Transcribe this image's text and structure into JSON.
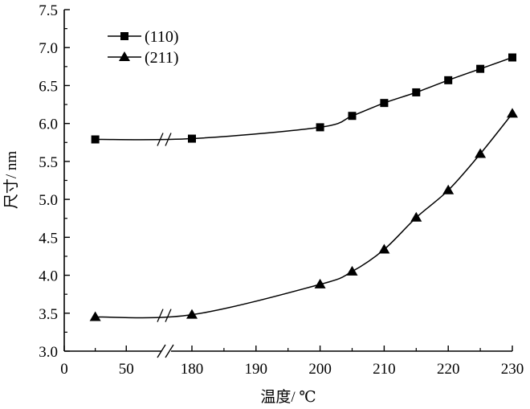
{
  "chart_data": {
    "type": "line",
    "title": "",
    "xlabel": "温度/ ℃",
    "ylabel": "尺寸/ nm",
    "x_axis_break": "between 50 and 180",
    "x_ticks_left": [
      0,
      50
    ],
    "x_ticks_right": [
      180,
      190,
      200,
      210,
      220,
      230
    ],
    "x_tick_labels": [
      "0",
      "50",
      "180",
      "190",
      "200",
      "210",
      "220",
      "230"
    ],
    "y_ticks": [
      3.0,
      3.5,
      4.0,
      4.5,
      5.0,
      5.5,
      6.0,
      6.5,
      7.0,
      7.5
    ],
    "y_tick_labels": [
      "3.0",
      "3.5",
      "4.0",
      "4.5",
      "5.0",
      "5.5",
      "6.0",
      "6.5",
      "7.0",
      "7.5"
    ],
    "ylim": [
      3.0,
      7.5
    ],
    "legend_position": "top-left",
    "x": [
      25,
      180,
      200,
      205,
      210,
      215,
      220,
      225,
      230
    ],
    "series": [
      {
        "name": "(110)",
        "marker": "square",
        "values": [
          5.79,
          5.8,
          5.95,
          6.1,
          6.27,
          6.41,
          6.57,
          6.72,
          6.87
        ]
      },
      {
        "name": "(211)",
        "marker": "triangle",
        "values": [
          3.45,
          3.48,
          3.88,
          4.05,
          4.34,
          4.76,
          5.12,
          5.6,
          6.13
        ]
      }
    ]
  }
}
